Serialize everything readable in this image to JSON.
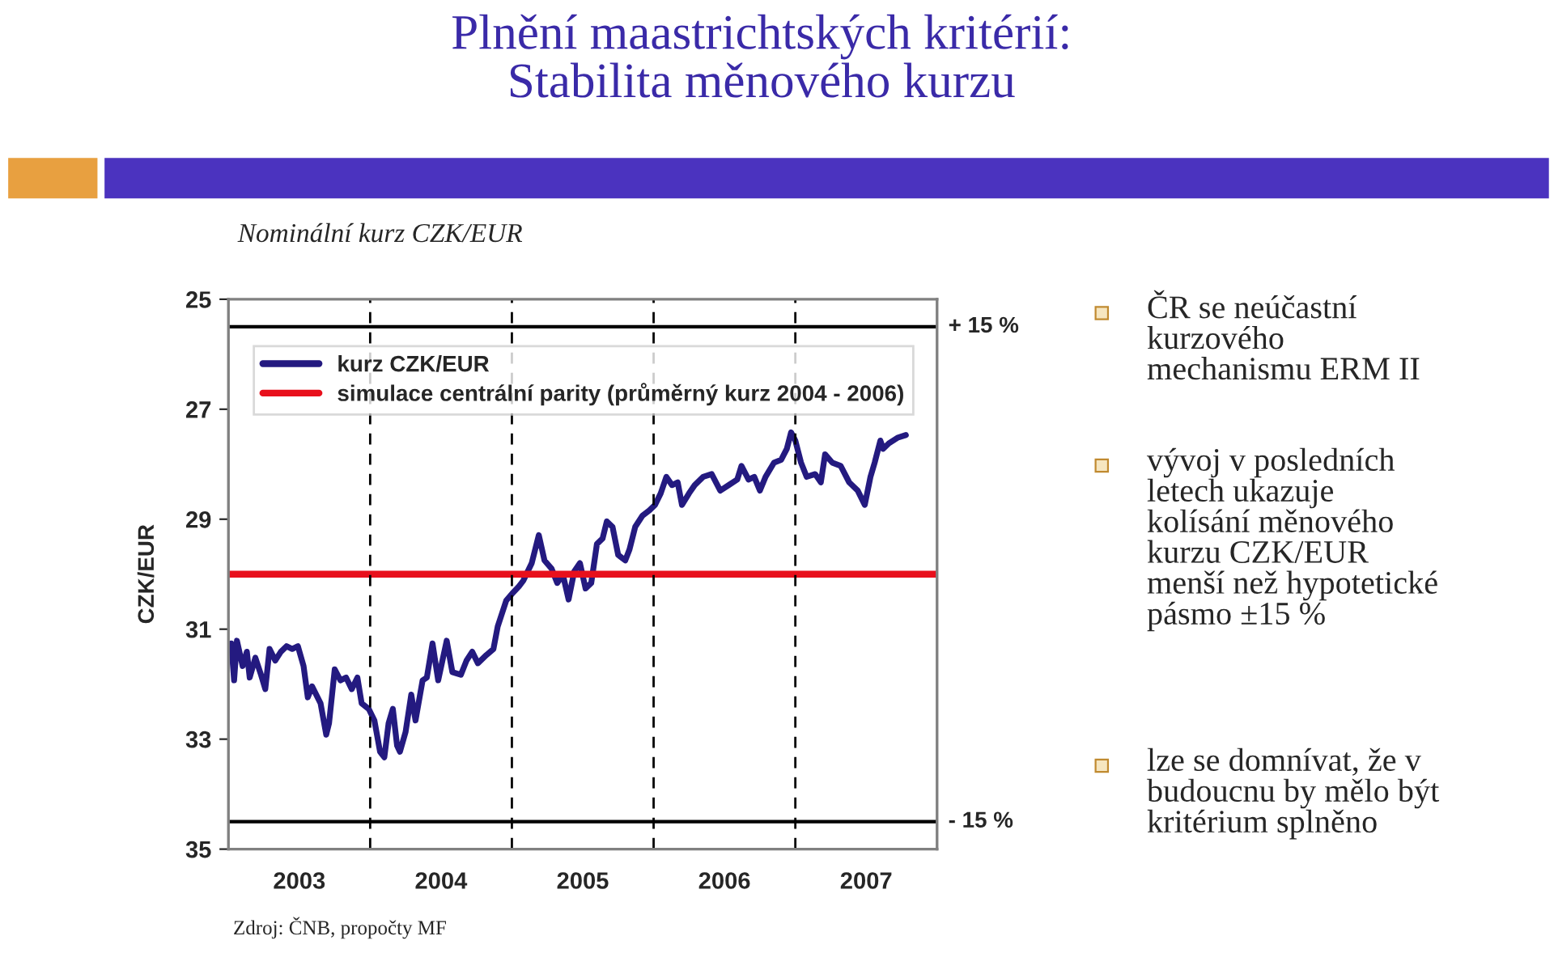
{
  "chart_data": {
    "type": "line",
    "title": "Plnění maastrichtských kritérií:\nStabilita měnového kurzu",
    "subtitle": "Nominální kurz CZK/EUR",
    "ylabel": "CZK/EUR",
    "series": [
      {
        "name": "kurz CZK/EUR",
        "color": "#241a80",
        "x": [
          2003.02,
          2003.04,
          2003.06,
          2003.1,
          2003.13,
          2003.15,
          2003.19,
          2003.23,
          2003.26,
          2003.29,
          2003.33,
          2003.37,
          2003.41,
          2003.45,
          2003.49,
          2003.53,
          2003.56,
          2003.59,
          2003.65,
          2003.69,
          2003.71,
          2003.75,
          2003.79,
          2003.83,
          2003.87,
          2003.91,
          2003.94,
          2003.99,
          2004.03,
          2004.07,
          2004.1,
          2004.13,
          2004.16,
          2004.19,
          2004.21,
          2004.25,
          2004.29,
          2004.32,
          2004.37,
          2004.4,
          2004.44,
          2004.48,
          2004.54,
          2004.58,
          2004.64,
          2004.68,
          2004.72,
          2004.76,
          2004.82,
          2004.87,
          2004.9,
          2004.96,
          2005.01,
          2005.05,
          2005.08,
          2005.14,
          2005.19,
          2005.23,
          2005.28,
          2005.32,
          2005.36,
          2005.4,
          2005.44,
          2005.48,
          2005.52,
          2005.56,
          2005.6,
          2005.64,
          2005.67,
          2005.71,
          2005.75,
          2005.8,
          2005.83,
          2005.87,
          2005.92,
          2005.97,
          2006.01,
          2006.05,
          2006.09,
          2006.13,
          2006.17,
          2006.2,
          2006.25,
          2006.29,
          2006.35,
          2006.41,
          2006.47,
          2006.53,
          2006.59,
          2006.62,
          2006.67,
          2006.71,
          2006.75,
          2006.79,
          2006.85,
          2006.9,
          2006.94,
          2006.97,
          2007.0,
          2007.04,
          2007.08,
          2007.14,
          2007.18,
          2007.21,
          2007.26,
          2007.32,
          2007.38,
          2007.44,
          2007.49,
          2007.53,
          2007.56,
          2007.6,
          2007.62,
          2007.66,
          2007.72,
          2007.78
        ],
        "values": [
          31.26,
          31.93,
          31.21,
          31.67,
          31.41,
          31.88,
          31.52,
          31.83,
          32.09,
          31.36,
          31.57,
          31.41,
          31.31,
          31.36,
          31.31,
          31.67,
          32.24,
          32.04,
          32.35,
          32.92,
          32.71,
          31.73,
          31.93,
          31.88,
          32.09,
          31.88,
          32.35,
          32.45,
          32.66,
          33.23,
          33.33,
          32.71,
          32.45,
          33.12,
          33.23,
          32.87,
          32.19,
          32.66,
          31.93,
          31.88,
          31.26,
          31.93,
          31.21,
          31.78,
          31.83,
          31.57,
          31.41,
          31.62,
          31.47,
          31.36,
          30.95,
          30.48,
          30.33,
          30.22,
          30.12,
          29.8,
          29.29,
          29.75,
          29.9,
          30.16,
          30.01,
          30.46,
          29.95,
          29.8,
          30.26,
          30.16,
          29.45,
          29.35,
          29.04,
          29.14,
          29.65,
          29.75,
          29.55,
          29.14,
          28.94,
          28.84,
          28.74,
          28.53,
          28.23,
          28.38,
          28.33,
          28.74,
          28.53,
          28.38,
          28.23,
          28.18,
          28.48,
          28.38,
          28.28,
          28.03,
          28.28,
          28.23,
          28.48,
          28.23,
          27.97,
          27.92,
          27.72,
          27.42,
          27.57,
          27.97,
          28.23,
          28.18,
          28.33,
          27.82,
          27.97,
          28.03,
          28.33,
          28.48,
          28.74,
          28.23,
          27.97,
          27.57,
          27.72,
          27.62,
          27.52,
          27.47
        ]
      },
      {
        "name": "simulace centrální parity (průměrný kurz 2004 - 2006)",
        "color": "#e8101c",
        "x": [
          2003,
          2008
        ],
        "values": [
          30.0,
          30.0
        ]
      }
    ],
    "xlim": [
      2003,
      2008
    ],
    "xticks": [
      {
        "value": 2003.5,
        "label": "2003"
      },
      {
        "value": 2004.5,
        "label": "2004"
      },
      {
        "value": 2005.5,
        "label": "2005"
      },
      {
        "value": 2006.5,
        "label": "2006"
      },
      {
        "value": 2007.5,
        "label": "2007"
      }
    ],
    "ylim": [
      35,
      25
    ],
    "yticks": [
      25,
      27,
      29,
      31,
      33,
      35
    ],
    "ref_lines": [
      {
        "axis": "y",
        "value": 25.5,
        "color": "#000000",
        "line_style": "solid"
      },
      {
        "axis": "y",
        "value": 34.5,
        "color": "#000000",
        "line_style": "solid"
      },
      {
        "axis": "x",
        "value": 2004,
        "color": "#000000",
        "line_style": "dashed"
      },
      {
        "axis": "x",
        "value": 2005,
        "color": "#000000",
        "line_style": "dashed"
      },
      {
        "axis": "x",
        "value": 2006,
        "color": "#000000",
        "line_style": "dashed"
      },
      {
        "axis": "x",
        "value": 2007,
        "color": "#000000",
        "line_style": "dashed"
      }
    ],
    "legend": "top left",
    "grid": false,
    "marker": "none",
    "line_style": "solid",
    "annotations": [
      {
        "text": "+ 15 %",
        "x": 2008,
        "y": 25.5
      },
      {
        "text": "- 15 %",
        "x": 2008,
        "y": 34.5
      },
      "ČR se neúčastní\nkurzového\nmechanismu ERM II",
      "vývoj v posledních\nletech ukazuje\nkolísání měnového\nkurzu CZK/EUR\nmenší než hypotetické\npásmo ±15 %",
      "lze se domnívat, že v\nbudoucnu by mělo být\nkritérium splněno",
      "Zdroj: ČNB, propočty MF"
    ]
  }
}
